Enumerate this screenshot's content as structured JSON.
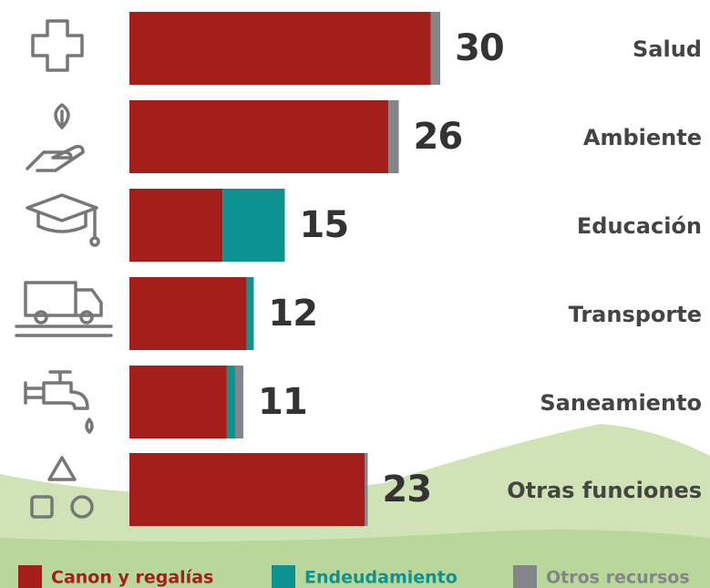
{
  "chart_data": {
    "type": "stacked-bar-horizontal",
    "categories": [
      "Salud",
      "Ambiente",
      "Educación",
      "Transporte",
      "Saneamiento",
      "Otras funciones"
    ],
    "series": [
      {
        "name": "Canon y regalías",
        "color": "#a51f1a",
        "values": [
          29.1,
          25,
          9,
          11.3,
          9.4,
          22.7
        ]
      },
      {
        "name": "Endeudamiento",
        "color": "#0e9191",
        "values": [
          null,
          null,
          6,
          0.7,
          0.8,
          null
        ]
      },
      {
        "name": "Otros recursos",
        "color": "#84858a",
        "values": [
          0.9,
          1,
          null,
          null,
          0.8,
          0.3
        ]
      }
    ],
    "totals": [
      30,
      26,
      15,
      12,
      11,
      23
    ],
    "xlim": [
      0,
      30
    ]
  }
}
